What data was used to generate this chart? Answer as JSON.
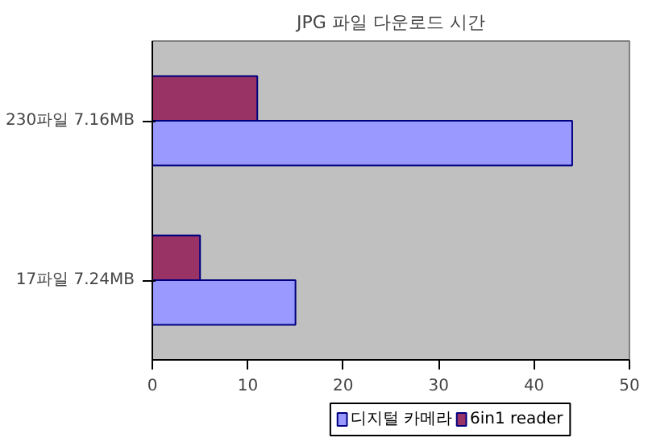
{
  "chart_data": {
    "type": "bar",
    "orientation": "horizontal",
    "title": "JPG 파일 다운로드 시간",
    "categories": [
      "230파일 7.16MB",
      "17파일 7.24MB"
    ],
    "series": [
      {
        "name": "디지털 카메라",
        "color": "#9999ff",
        "values": [
          44,
          15
        ]
      },
      {
        "name": "6in1 reader",
        "color": "#993366",
        "values": [
          11,
          5
        ]
      }
    ],
    "xlim": [
      0,
      50
    ],
    "xticks": [
      0,
      10,
      20,
      30,
      40,
      50
    ],
    "grid": false,
    "legend": "bottom"
  }
}
